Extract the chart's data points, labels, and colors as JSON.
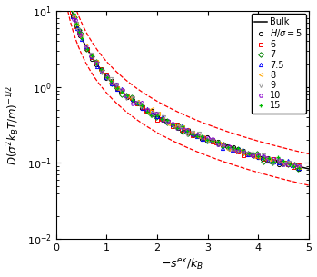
{
  "title": "",
  "xlabel": "$-s^{ex}/k_B$",
  "ylabel": "$D(\\sigma^2 k_BT/m)^{-1/2}$",
  "xlim": [
    0,
    5
  ],
  "ylim": [
    0.01,
    10
  ],
  "background_color": "#ffffff",
  "bulk_color": "black",
  "dashed_color": "red",
  "bulk_A": 1.4,
  "bulk_alpha": 1.75,
  "envelope_up_A": 2.2,
  "envelope_up_alpha": 1.75,
  "envelope_lo_A": 0.85,
  "envelope_lo_alpha": 1.75,
  "series": [
    {
      "label": "H/\\sigma=5",
      "color": "black",
      "marker": "o",
      "ms": 3.0,
      "mew": 0.7
    },
    {
      "label": "6",
      "color": "red",
      "marker": "s",
      "ms": 2.8,
      "mew": 0.7
    },
    {
      "label": "7",
      "color": "green",
      "marker": "D",
      "ms": 2.8,
      "mew": 0.7
    },
    {
      "label": "7.5",
      "color": "blue",
      "marker": "^",
      "ms": 3.0,
      "mew": 0.7
    },
    {
      "label": "8",
      "color": "orange",
      "marker": "<",
      "ms": 3.0,
      "mew": 0.7
    },
    {
      "label": "9",
      "color": "#999999",
      "marker": "v",
      "ms": 3.0,
      "mew": 0.7
    },
    {
      "label": "10",
      "color": "#8800cc",
      "marker": "p",
      "ms": 3.0,
      "mew": 0.7
    },
    {
      "label": "15",
      "color": "#00bb00",
      "marker": "+",
      "ms": 3.5,
      "mew": 0.9
    }
  ],
  "series_A": [
    1.4,
    1.38,
    1.4,
    1.4,
    1.4,
    1.4,
    1.4,
    1.4
  ],
  "series_alpha": [
    1.75,
    1.76,
    1.75,
    1.75,
    1.75,
    1.75,
    1.75,
    1.75
  ],
  "x_data": [
    0.05,
    0.1,
    0.15,
    0.2,
    0.25,
    0.3,
    0.35,
    0.4,
    0.45,
    0.5,
    0.6,
    0.7,
    0.8,
    0.9,
    1.0,
    1.1,
    1.2,
    1.3,
    1.4,
    1.5,
    1.6,
    1.7,
    1.8,
    1.9,
    2.0,
    2.1,
    2.2,
    2.3,
    2.4,
    2.5,
    2.6,
    2.7,
    2.8,
    2.9,
    3.0,
    3.1,
    3.2,
    3.3,
    3.4,
    3.5,
    3.6,
    3.7,
    3.8,
    3.9,
    4.0,
    4.1,
    4.2,
    4.3,
    4.4,
    4.5,
    4.6,
    4.7,
    4.8
  ]
}
